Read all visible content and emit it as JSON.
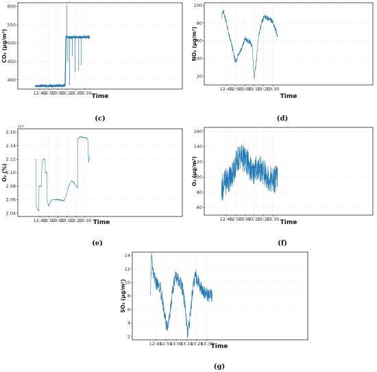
{
  "chart_data": [
    {
      "type": "line",
      "panel_label": "(c)",
      "xlabel": "Time",
      "ylabel": "CO₂ (μg/m³)",
      "x_ticks": [
        "12:40",
        "12:50",
        "13:00",
        "13:10",
        "13:20",
        "13:30"
      ],
      "y_ticks": [
        "400",
        "450",
        "500",
        "550",
        "600"
      ],
      "ylim": [
        375,
        610
      ],
      "grid": true,
      "color": "#1f77b4",
      "series": [
        {
          "x": [
            "12:35",
            "12:40",
            "12:45",
            "12:50",
            "12:55",
            "13:00",
            "13:05",
            "13:08",
            "13:09",
            "13:10",
            "13:12",
            "13:15",
            "13:20",
            "13:25",
            "13:30",
            "13:35"
          ],
          "y": [
            383,
            383,
            384,
            383,
            384,
            384,
            384,
            384,
            516,
            517,
            516,
            516,
            516,
            516,
            516,
            516
          ]
        }
      ],
      "spikes": [
        {
          "x": "13:10",
          "y": 605
        },
        {
          "x": "13:11",
          "y": 450
        },
        {
          "x": "13:13",
          "y": 385
        },
        {
          "x": "13:16",
          "y": 465
        },
        {
          "x": "13:19",
          "y": 420
        },
        {
          "x": "13:23",
          "y": 425
        },
        {
          "x": "13:26",
          "y": 440
        }
      ]
    },
    {
      "type": "line",
      "panel_label": "(d)",
      "xlabel": "Time",
      "ylabel": "NO₂ (μg/m³)",
      "x_ticks": [
        "12:40",
        "12:50",
        "13:00",
        "13:10",
        "13:20",
        "13:30"
      ],
      "y_ticks": [
        "20",
        "40",
        "60",
        "80",
        "100"
      ],
      "ylim": [
        10,
        103
      ],
      "grid": true,
      "color": "#1f77b4",
      "series": [
        {
          "x": [
            "12:35",
            "12:37",
            "12:40",
            "12:43",
            "12:46",
            "12:50",
            "12:53",
            "12:57",
            "13:00",
            "13:03",
            "13:06",
            "13:08",
            "13:10",
            "13:12",
            "13:15",
            "13:18",
            "13:21",
            "13:25",
            "13:30",
            "13:35"
          ],
          "y": [
            88,
            93,
            82,
            66,
            55,
            35,
            45,
            52,
            62,
            60,
            58,
            52,
            18,
            35,
            67,
            80,
            88,
            85,
            82,
            66
          ]
        }
      ]
    },
    {
      "type": "line",
      "panel_label": "(e)",
      "xlabel": "Time",
      "ylabel": "O₂ (%)",
      "y_multiplier": "1e7",
      "x_ticks": [
        "12:40",
        "12:50",
        "13:00",
        "13:10",
        "13:20",
        "13:30"
      ],
      "y_ticks": [
        "2.04",
        "2.06",
        "2.08",
        "2.10",
        "2.12",
        "2.14",
        "2.16"
      ],
      "ylim": [
        2.035,
        2.165
      ],
      "grid": true,
      "color": "#1f77b4",
      "series": [
        {
          "x": [
            "12:35",
            "12:36",
            "12:36",
            "12:39",
            "12:39",
            "12:42",
            "12:42",
            "12:43",
            "12:44",
            "12:45",
            "12:46",
            "12:46",
            "12:48",
            "12:48",
            "12:50",
            "12:52",
            "12:55",
            "13:00",
            "13:05",
            "13:07",
            "13:10",
            "13:12",
            "13:15",
            "13:18",
            "13:20",
            "13:22",
            "13:22",
            "13:25",
            "13:30",
            "13:33",
            "13:34",
            "13:35"
          ],
          "y": [
            2.12,
            2.118,
            2.05,
            2.043,
            2.08,
            2.08,
            2.101,
            2.117,
            2.12,
            2.12,
            2.118,
            2.1,
            2.1,
            2.06,
            2.05,
            2.058,
            2.06,
            2.06,
            2.059,
            2.058,
            2.07,
            2.08,
            2.088,
            2.085,
            2.08,
            2.078,
            2.15,
            2.153,
            2.152,
            2.15,
            2.115,
            2.125
          ]
        }
      ]
    },
    {
      "type": "line",
      "panel_label": "(f)",
      "xlabel": "Time",
      "ylabel": "O₃ (μg/m³)",
      "x_ticks": [
        "12:40",
        "12:50",
        "13:00",
        "13:10",
        "13:20",
        "13:30"
      ],
      "y_ticks": [
        "60",
        "80",
        "100",
        "120",
        "140",
        "160"
      ],
      "ylim": [
        50,
        165
      ],
      "grid": true,
      "color": "#1f77b4",
      "series": [
        {
          "x": [
            "12:35",
            "12:40",
            "12:45",
            "12:50",
            "12:53",
            "12:56",
            "13:00",
            "13:03",
            "13:06",
            "13:08",
            "13:10",
            "13:15",
            "13:20",
            "13:25",
            "13:30",
            "13:35"
          ],
          "y": [
            85,
            95,
            100,
            115,
            125,
            128,
            122,
            118,
            112,
            102,
            110,
            112,
            105,
            100,
            95,
            100
          ]
        }
      ]
    },
    {
      "type": "line",
      "panel_label": "(g)",
      "xlabel": "Time",
      "ylabel": "SO₂ (μg/m³)",
      "x_ticks": [
        "12:40",
        "12:50",
        "13:00",
        "13:10",
        "13:20",
        "13:30"
      ],
      "y_ticks": [
        "2",
        "4",
        "6",
        "8",
        "10",
        "12",
        "14"
      ],
      "ylim": [
        1.5,
        14.5
      ],
      "grid": true,
      "color": "#1f77b4",
      "series": [
        {
          "x": [
            "12:35",
            "12:36",
            "12:38",
            "12:40",
            "12:44",
            "12:47",
            "12:49",
            "12:51",
            "12:53",
            "12:56",
            "12:59",
            "13:02",
            "13:05",
            "13:07",
            "13:09",
            "13:11",
            "13:13",
            "13:16",
            "13:19",
            "13:22",
            "13:25",
            "13:28",
            "13:32",
            "13:35"
          ],
          "y": [
            9,
            13.5,
            11,
            10,
            9.5,
            7,
            5,
            3.5,
            4.5,
            8,
            11,
            10.5,
            9.5,
            8.5,
            6,
            2.2,
            4,
            9,
            11,
            10,
            9,
            8.5,
            8,
            8
          ]
        }
      ]
    }
  ]
}
